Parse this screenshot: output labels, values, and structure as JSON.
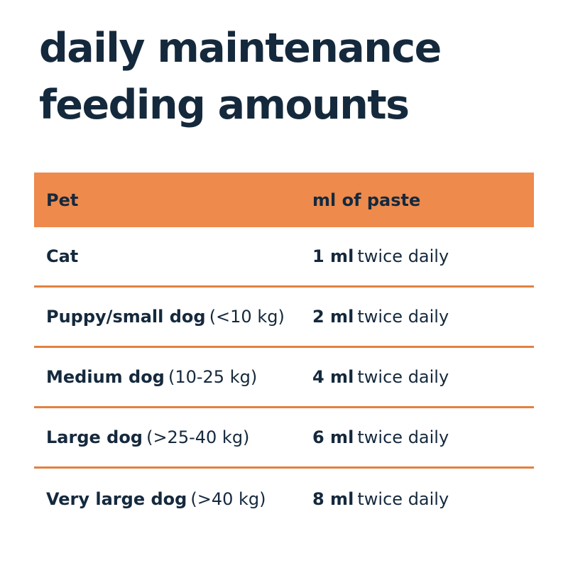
{
  "title": {
    "line1": "daily maintenance",
    "line2": "feeding amounts"
  },
  "table": {
    "header": {
      "pet": "Pet",
      "amount": "ml of paste"
    },
    "rows": [
      {
        "pet": "Cat",
        "weight": "",
        "dose": "1 ml",
        "frequency": "twice daily"
      },
      {
        "pet": "Puppy/small dog",
        "weight": "(<10 kg)",
        "dose": "2 ml",
        "frequency": "twice daily"
      },
      {
        "pet": "Medium dog",
        "weight": "(10-25 kg)",
        "dose": "4 ml",
        "frequency": "twice daily"
      },
      {
        "pet": "Large dog",
        "weight": "(>25-40 kg)",
        "dose": "6 ml",
        "frequency": "twice daily"
      },
      {
        "pet": "Very large dog",
        "weight": "(>40 kg)",
        "dose": "8 ml",
        "frequency": "twice daily"
      }
    ]
  },
  "colors": {
    "text_navy": "#15293D",
    "header_orange": "#ED8A4C",
    "divider_orange": "#E2813F",
    "background": "#FFFFFF"
  }
}
